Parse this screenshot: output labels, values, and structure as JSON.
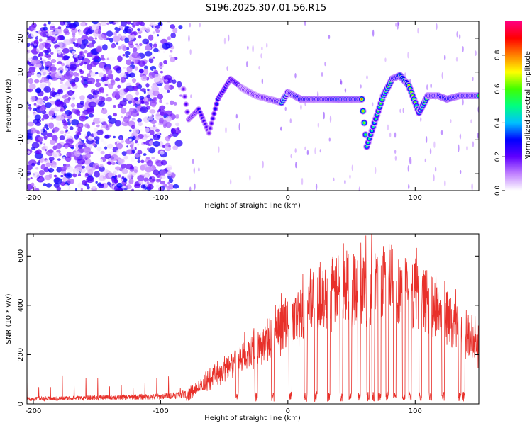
{
  "page_title": "S196.2025.307.01.56.R15",
  "chart_data": [
    {
      "type": "heatmap",
      "title": "S196.2025.307.01.56.R15",
      "xlabel": "Height of straight line (km)",
      "ylabel": "Frequency (Hz)",
      "xlim": [
        -205,
        150
      ],
      "ylim": [
        -25,
        25
      ],
      "xticks": [
        -200,
        -100,
        0,
        100
      ],
      "yticks": [
        -20,
        -10,
        0,
        10,
        20
      ],
      "noise_x_range": [
        -205,
        -80
      ],
      "colorbar": {
        "label": "Normalized spectral amplitude",
        "range": [
          0.0,
          1.0
        ],
        "ticks": [
          0.0,
          0.2,
          0.4,
          0.6,
          0.8
        ],
        "tick_labels": [
          "0.0",
          "0.2",
          "0.4",
          "0.6",
          "0.8"
        ],
        "colors": [
          "#ffffff",
          "#c080ff",
          "#6000ff",
          "#0000ff",
          "#00c0ff",
          "#00ff80",
          "#40ff00",
          "#ffff00",
          "#ff8000",
          "#ff0000",
          "#ff0080"
        ]
      },
      "ridge": [
        {
          "x": -82,
          "y": 5,
          "amp": 0.2
        },
        {
          "x": -78,
          "y": -4,
          "amp": 0.25
        },
        {
          "x": -70,
          "y": -1,
          "amp": 0.3
        },
        {
          "x": -62,
          "y": -8,
          "amp": 0.2
        },
        {
          "x": -55,
          "y": 2,
          "amp": 0.35
        },
        {
          "x": -45,
          "y": 8,
          "amp": 0.3
        },
        {
          "x": -35,
          "y": 5,
          "amp": 0.45
        },
        {
          "x": -25,
          "y": 3,
          "amp": 0.55
        },
        {
          "x": -15,
          "y": 2,
          "amp": 0.6
        },
        {
          "x": -5,
          "y": 1,
          "amp": 0.7
        },
        {
          "x": 0,
          "y": 4,
          "amp": 0.6
        },
        {
          "x": 10,
          "y": 2,
          "amp": 0.85
        },
        {
          "x": 20,
          "y": 2,
          "amp": 0.8
        },
        {
          "x": 30,
          "y": 2,
          "amp": 0.75
        },
        {
          "x": 40,
          "y": 2,
          "amp": 0.95
        },
        {
          "x": 50,
          "y": 2,
          "amp": 0.9
        },
        {
          "x": 58,
          "y": 2,
          "amp": 0.85
        },
        {
          "x": 62,
          "y": -12,
          "amp": 0.55
        },
        {
          "x": 68,
          "y": -5,
          "amp": 0.5
        },
        {
          "x": 75,
          "y": 3,
          "amp": 0.65
        },
        {
          "x": 82,
          "y": 8,
          "amp": 0.75
        },
        {
          "x": 88,
          "y": 9,
          "amp": 0.9
        },
        {
          "x": 95,
          "y": 6,
          "amp": 0.8
        },
        {
          "x": 103,
          "y": -2,
          "amp": 0.55
        },
        {
          "x": 110,
          "y": 3,
          "amp": 0.8
        },
        {
          "x": 118,
          "y": 3,
          "amp": 0.75
        },
        {
          "x": 125,
          "y": 2,
          "amp": 0.85
        },
        {
          "x": 135,
          "y": 3,
          "amp": 0.8
        },
        {
          "x": 145,
          "y": 3,
          "amp": 0.75
        },
        {
          "x": 150,
          "y": 3,
          "amp": 0.7
        }
      ]
    },
    {
      "type": "line",
      "xlabel": "Height of straight line (km)",
      "ylabel": "SNR (10 * v/v)",
      "xlim": [
        -205,
        150
      ],
      "ylim": [
        0,
        690
      ],
      "xticks": [
        -200,
        -100,
        0,
        100
      ],
      "yticks": [
        0,
        200,
        400,
        600
      ],
      "color": "#e8302a",
      "envelope": [
        {
          "x": -205,
          "y": 20
        },
        {
          "x": -150,
          "y": 25
        },
        {
          "x": -100,
          "y": 30
        },
        {
          "x": -80,
          "y": 40
        },
        {
          "x": -60,
          "y": 130
        },
        {
          "x": -40,
          "y": 220
        },
        {
          "x": -20,
          "y": 300
        },
        {
          "x": 0,
          "y": 400
        },
        {
          "x": 20,
          "y": 500
        },
        {
          "x": 40,
          "y": 580
        },
        {
          "x": 60,
          "y": 600
        },
        {
          "x": 80,
          "y": 610
        },
        {
          "x": 100,
          "y": 560
        },
        {
          "x": 120,
          "y": 470
        },
        {
          "x": 140,
          "y": 340
        },
        {
          "x": 150,
          "y": 290
        }
      ],
      "dropouts": [
        -40,
        -25,
        -12,
        2,
        14,
        22,
        32,
        42,
        49,
        56,
        63,
        67,
        72,
        78,
        84,
        91,
        96,
        104,
        112,
        122,
        135,
        138
      ]
    }
  ]
}
